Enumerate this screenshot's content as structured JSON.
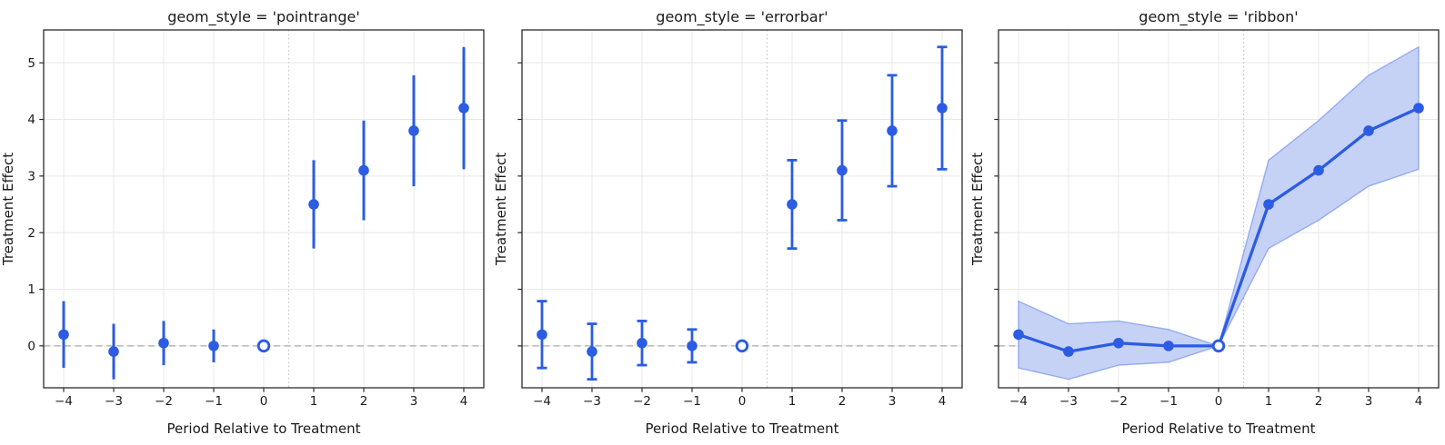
{
  "colors": {
    "accent": "#2b5ce2",
    "ribbon_fill": "#c5d2f6",
    "ribbon_edge": "rgba(65,105,225,0.45)",
    "grid": "#e8e8e8",
    "spine": "#2b2b2b",
    "zero_line": "#ababab",
    "treatment_line": "#c9c9c9",
    "text": "#1a1a1a",
    "background": "#ffffff",
    "marker_open_fill": "#ffffff"
  },
  "chart_data": {
    "type": "line",
    "subtype": "event-study with confidence intervals, three facet styles",
    "facets": [
      {
        "title": "geom_style = 'pointrange'",
        "geom": "pointrange"
      },
      {
        "title": "geom_style = 'errorbar'",
        "geom": "errorbar"
      },
      {
        "title": "geom_style = 'ribbon'",
        "geom": "ribbon"
      }
    ],
    "x": [
      -4,
      -3,
      -2,
      -1,
      0,
      1,
      2,
      3,
      4
    ],
    "series": [
      {
        "name": "estimate",
        "values": [
          0.2,
          -0.1,
          0.05,
          0.0,
          0.0,
          2.5,
          3.1,
          3.8,
          4.2
        ]
      },
      {
        "name": "ci_lower",
        "values": [
          -0.39,
          -0.59,
          -0.34,
          -0.29,
          0.0,
          1.72,
          2.22,
          2.82,
          3.12
        ]
      },
      {
        "name": "ci_upper",
        "values": [
          0.79,
          0.39,
          0.44,
          0.29,
          0.0,
          3.28,
          3.98,
          4.78,
          5.28
        ]
      }
    ],
    "reference_period": 0,
    "xlabel": "Period Relative to Treatment",
    "ylabel": "Treatment Effect",
    "xticks": [
      -4,
      -3,
      -2,
      -1,
      0,
      1,
      2,
      3,
      4
    ],
    "xtick_labels": [
      "−4",
      "−3",
      "−2",
      "−1",
      "0",
      "1",
      "2",
      "3",
      "4"
    ],
    "yticks": [
      0,
      1,
      2,
      3,
      4,
      5
    ],
    "ytick_labels": [
      "0",
      "1",
      "2",
      "3",
      "4",
      "5"
    ],
    "xlim": [
      -4.4,
      4.4
    ],
    "ylim": [
      -0.74,
      5.58
    ],
    "grid": true,
    "legend": "none",
    "hline": {
      "y": 0,
      "style": "dashed"
    },
    "vline": {
      "x": 0.5,
      "style": "dotted"
    }
  }
}
